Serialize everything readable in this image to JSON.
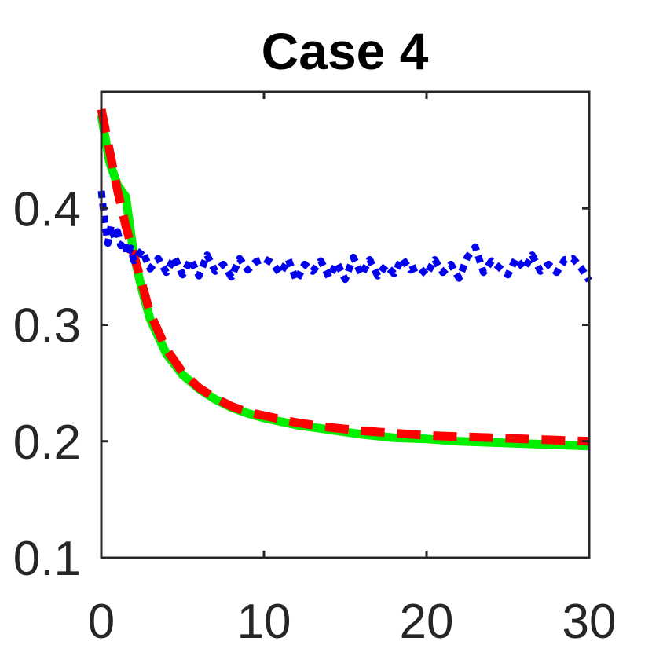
{
  "chart_data": {
    "type": "line",
    "title": "Case 4",
    "xlabel": "",
    "ylabel": "",
    "xlim": [
      0,
      30
    ],
    "ylim": [
      0.1,
      0.5
    ],
    "xticks": [
      0,
      10,
      20,
      30
    ],
    "xtick_labels": [
      "0",
      "10",
      "20",
      "30"
    ],
    "yticks": [
      0.1,
      0.2,
      0.3,
      0.4
    ],
    "ytick_labels": [
      "0.1",
      "0.2",
      "0.3",
      "0.4"
    ],
    "grid": false,
    "legend": "none",
    "series": [
      {
        "color": "#00ee00",
        "style": "solid",
        "x": [
          0,
          0.5,
          1,
          1.5,
          2,
          2.5,
          3,
          4,
          5,
          6,
          7,
          8,
          9,
          10,
          12,
          14,
          16,
          18,
          20,
          22,
          24,
          26,
          28,
          30
        ],
        "y": [
          0.48,
          0.44,
          0.42,
          0.41,
          0.36,
          0.33,
          0.305,
          0.275,
          0.257,
          0.245,
          0.236,
          0.229,
          0.224,
          0.22,
          0.214,
          0.21,
          0.206,
          0.203,
          0.202,
          0.2,
          0.199,
          0.198,
          0.197,
          0.196
        ]
      },
      {
        "color": "#ff0000",
        "style": "dashed",
        "x": [
          0,
          0.5,
          1,
          1.5,
          2,
          2.5,
          3,
          4,
          5,
          6,
          7,
          8,
          9,
          10,
          12,
          14,
          16,
          18,
          20,
          22,
          24,
          26,
          28,
          30
        ],
        "y": [
          0.485,
          0.45,
          0.415,
          0.385,
          0.36,
          0.335,
          0.31,
          0.279,
          0.259,
          0.246,
          0.237,
          0.23,
          0.225,
          0.222,
          0.216,
          0.212,
          0.209,
          0.207,
          0.205,
          0.204,
          0.203,
          0.202,
          0.201,
          0.2
        ]
      },
      {
        "color": "#0000ee",
        "style": "dotted",
        "x": [
          0,
          0.2,
          0.4,
          0.6,
          0.8,
          1,
          1.2,
          1.4,
          1.6,
          1.8,
          2,
          2.5,
          3,
          3.5,
          4,
          4.5,
          5,
          5.5,
          6,
          6.5,
          7,
          7.5,
          8,
          8.5,
          9,
          9.5,
          10,
          10.5,
          11,
          11.5,
          12,
          12.5,
          13,
          13.5,
          14,
          14.5,
          15,
          15.5,
          16,
          16.5,
          17,
          17.5,
          18,
          18.5,
          19,
          19.5,
          20,
          20.5,
          21,
          21.5,
          22,
          22.5,
          23,
          23.5,
          24,
          24.5,
          25,
          25.5,
          26,
          26.5,
          27,
          27.5,
          28,
          28.5,
          29,
          29.5,
          30
        ],
        "y": [
          0.415,
          0.39,
          0.37,
          0.385,
          0.375,
          0.38,
          0.368,
          0.372,
          0.36,
          0.366,
          0.355,
          0.364,
          0.348,
          0.357,
          0.345,
          0.358,
          0.343,
          0.356,
          0.342,
          0.36,
          0.346,
          0.352,
          0.341,
          0.357,
          0.347,
          0.354,
          0.357,
          0.353,
          0.344,
          0.356,
          0.338,
          0.352,
          0.346,
          0.355,
          0.341,
          0.353,
          0.339,
          0.358,
          0.343,
          0.356,
          0.342,
          0.351,
          0.344,
          0.357,
          0.347,
          0.35,
          0.343,
          0.356,
          0.345,
          0.352,
          0.34,
          0.358,
          0.367,
          0.345,
          0.355,
          0.349,
          0.343,
          0.357,
          0.348,
          0.36,
          0.346,
          0.352,
          0.345,
          0.356,
          0.357,
          0.349,
          0.338
        ]
      }
    ]
  }
}
